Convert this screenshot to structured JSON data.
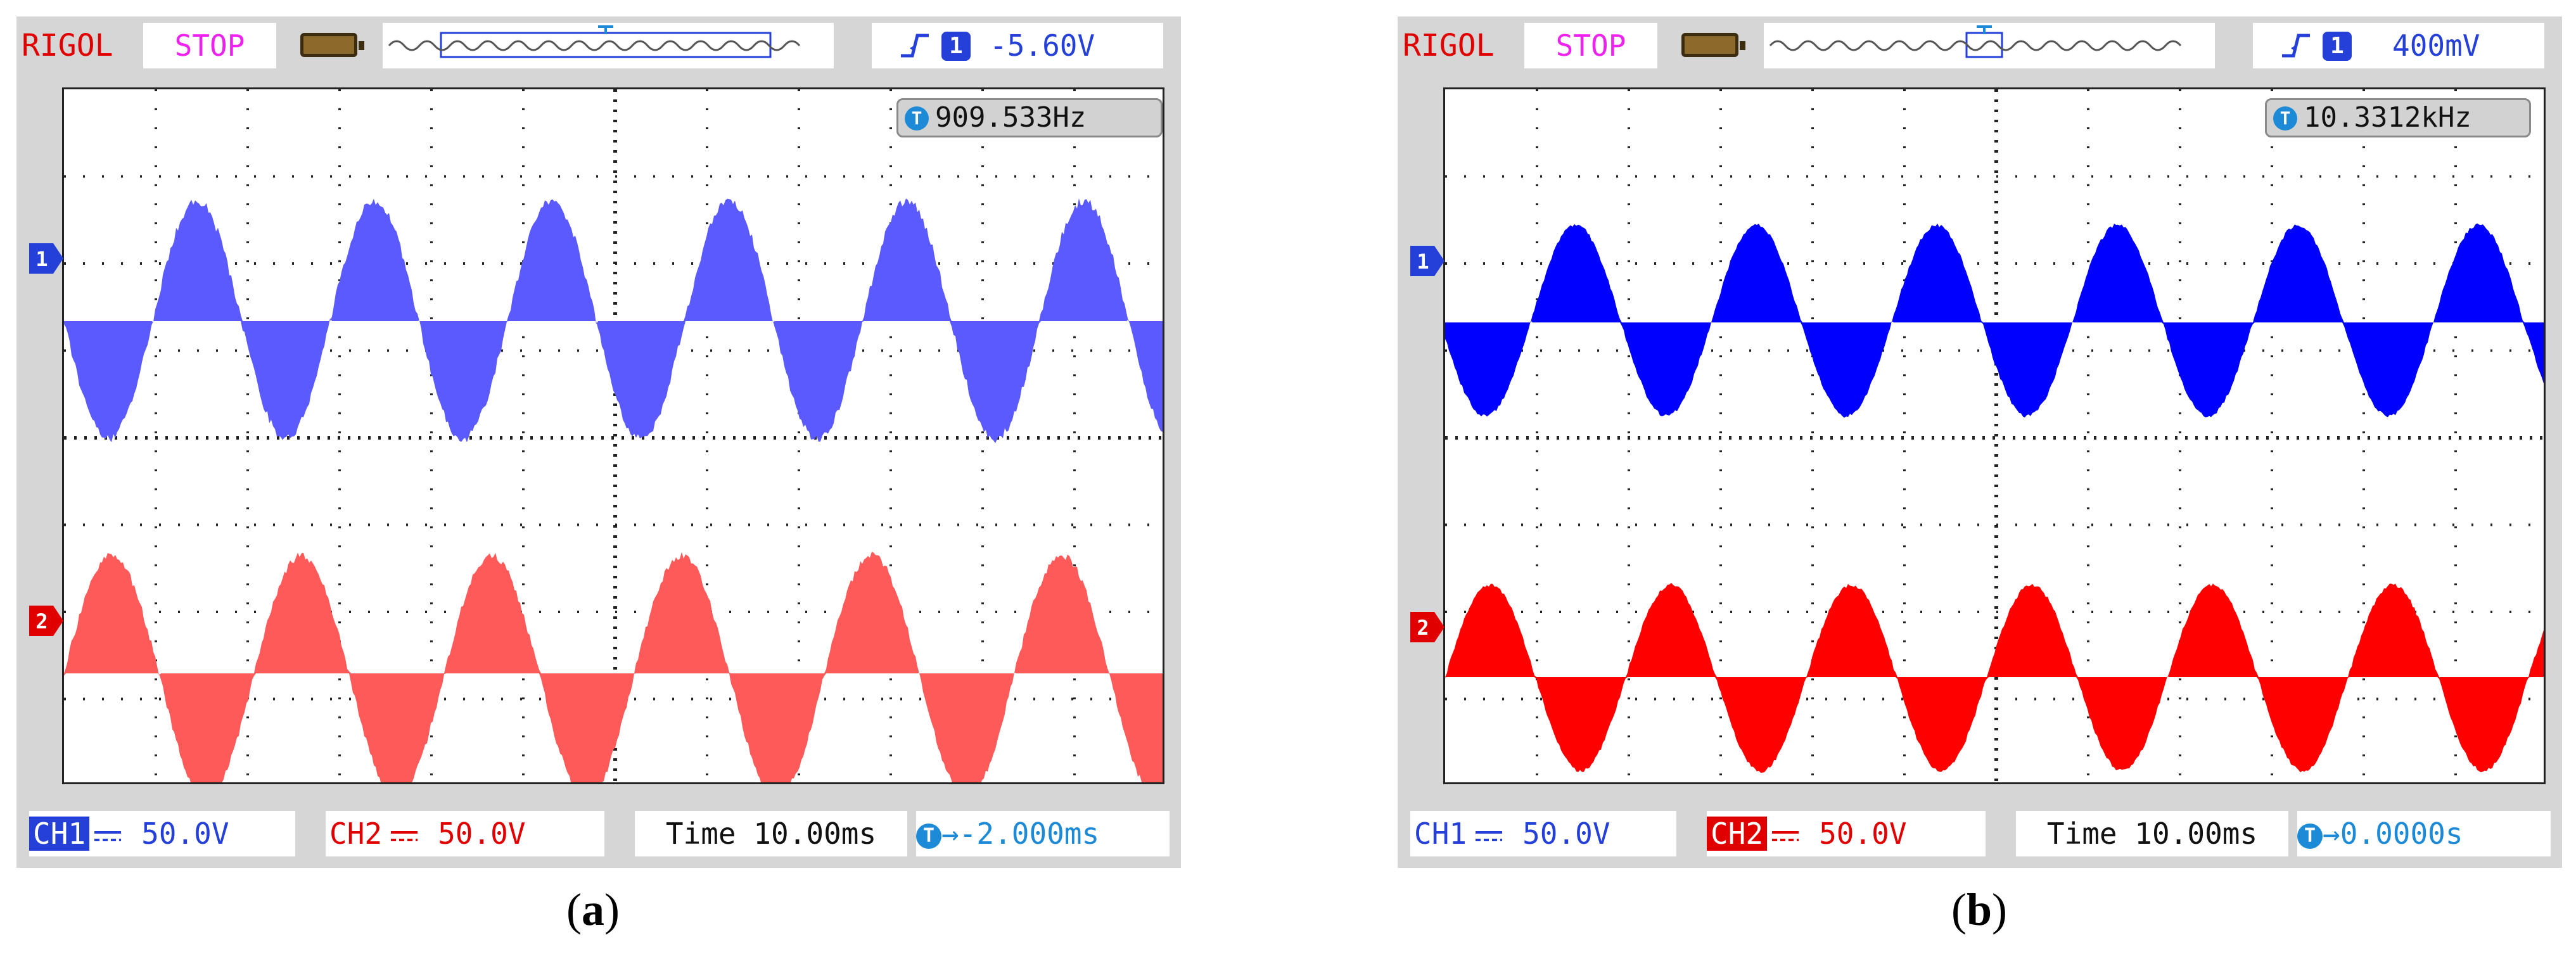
{
  "panels": [
    {
      "brand": "RIGOL",
      "status": "STOP",
      "trigger_source": "1",
      "trigger_level": "-5.60V",
      "frequency": "909.533Hz",
      "ch1_label": "CH1",
      "ch1_scale": "50.0V",
      "ch2_label": "CH2",
      "ch2_scale": "50.0V",
      "time_label": "Time 10.00ms",
      "trigger_offset": "→-2.000ms",
      "caption_letter": "a",
      "caption_open": "(",
      "caption_close": ")",
      "ch1_color": "#5a5aff",
      "ch2_color": "#ff5a5a",
      "ch1_label_inverted": true,
      "ch2_label_inverted": false
    },
    {
      "brand": "RIGOL",
      "status": "STOP",
      "trigger_source": "1",
      "trigger_level": "400mV",
      "frequency": "10.3312kHz",
      "ch1_label": "CH1",
      "ch1_scale": "50.0V",
      "ch2_label": "CH2",
      "ch2_scale": "50.0V",
      "time_label": "Time 10.00ms",
      "trigger_offset": "→0.0000s",
      "caption_letter": "b",
      "caption_open": "(",
      "caption_close": ")",
      "ch1_color": "#0000ff",
      "ch2_color": "#ff0000",
      "ch1_label_inverted": false,
      "ch2_label_inverted": true
    }
  ],
  "icons": {
    "trigger_marker": "trigger-t-marker-icon",
    "channel_marker": "channel-arrow-icon",
    "battery": "battery-icon",
    "coupling": "dc-coupling-icon"
  }
}
